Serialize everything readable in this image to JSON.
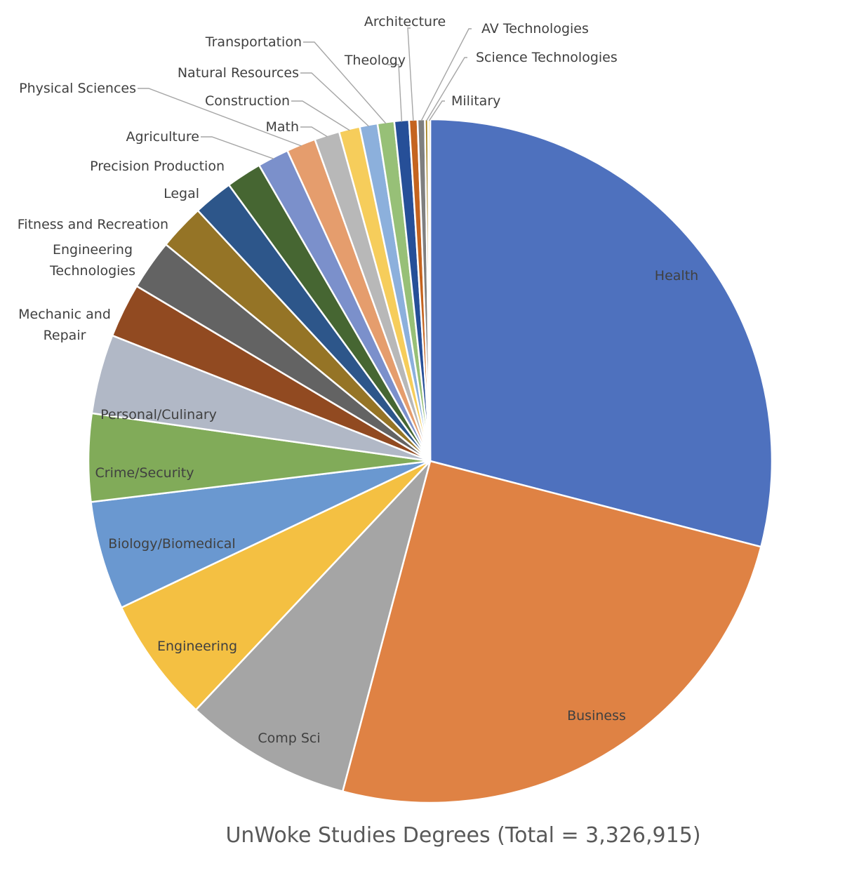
{
  "chart_data": {
    "type": "pie",
    "title": "UnWoke Studies Degrees (Total = 3,326,915)",
    "start_angle_deg": 0,
    "direction": "clockwise",
    "slices": [
      {
        "label": [
          "Health"
        ],
        "percent": 29.4,
        "color": "#4e71be",
        "label_mode": "inside"
      },
      {
        "label": [
          "Business"
        ],
        "percent": 25.4,
        "color": "#df8244",
        "label_mode": "inside"
      },
      {
        "label": [
          "Comp Sci"
        ],
        "percent": 8.0,
        "color": "#a5a5a5",
        "label_mode": "inside"
      },
      {
        "label": [
          "Engineering"
        ],
        "percent": 6.0,
        "color": "#f4c042",
        "label_mode": "inside"
      },
      {
        "label": [
          "Biology/Biomedical"
        ],
        "percent": 5.2,
        "color": "#6a98d0",
        "label_mode": "inside"
      },
      {
        "label": [
          "Crime/Security"
        ],
        "percent": 4.2,
        "color": "#81ab59",
        "label_mode": "inside"
      },
      {
        "label": [
          "Personal/Culinary"
        ],
        "percent": 3.8,
        "color": "#b1b8c6",
        "label_mode": "inside"
      },
      {
        "label": [
          "Mechanic and",
          "Repair"
        ],
        "percent": 2.6,
        "color": "#914a21",
        "label_mode": "outside"
      },
      {
        "label": [
          "Engineering",
          "Technologies"
        ],
        "percent": 2.4,
        "color": "#636363",
        "label_mode": "outside"
      },
      {
        "label": [
          "Fitness and Recreation"
        ],
        "percent": 2.2,
        "color": "#957426",
        "label_mode": "outside"
      },
      {
        "label": [
          "Legal"
        ],
        "percent": 1.9,
        "color": "#2d568a",
        "label_mode": "outside"
      },
      {
        "label": [
          "Precision Production"
        ],
        "percent": 1.7,
        "color": "#466632",
        "label_mode": "outside"
      },
      {
        "label": [
          "Agriculture"
        ],
        "percent": 1.5,
        "color": "#7b90cb",
        "label_mode": "outside"
      },
      {
        "label": [
          "Physical Sciences"
        ],
        "percent": 1.4,
        "color": "#e59d6d",
        "label_mode": "outside"
      },
      {
        "label": [
          "Math"
        ],
        "percent": 1.2,
        "color": "#b8b8b8",
        "label_mode": "outside"
      },
      {
        "label": [
          "Construction"
        ],
        "percent": 1.0,
        "color": "#f6cd5b",
        "label_mode": "outside"
      },
      {
        "label": [
          "Natural Resources"
        ],
        "percent": 0.85,
        "color": "#8cb0dc",
        "label_mode": "outside"
      },
      {
        "label": [
          "Transportation"
        ],
        "percent": 0.8,
        "color": "#97c077",
        "label_mode": "outside"
      },
      {
        "label": [
          "Theology"
        ],
        "percent": 0.7,
        "color": "#264f98",
        "label_mode": "outside"
      },
      {
        "label": [
          "Architecture"
        ],
        "percent": 0.4,
        "color": "#c5641f",
        "label_mode": "outside"
      },
      {
        "label": [
          "AV Technologies"
        ],
        "percent": 0.35,
        "color": "#7f7f7f",
        "label_mode": "outside"
      },
      {
        "label": [
          "Science Technologies"
        ],
        "percent": 0.15,
        "color": "#a37f1c",
        "label_mode": "outside"
      },
      {
        "label": [
          "Military"
        ],
        "percent": 0.1,
        "color": "#f1c232",
        "label_mode": "outside"
      }
    ]
  }
}
